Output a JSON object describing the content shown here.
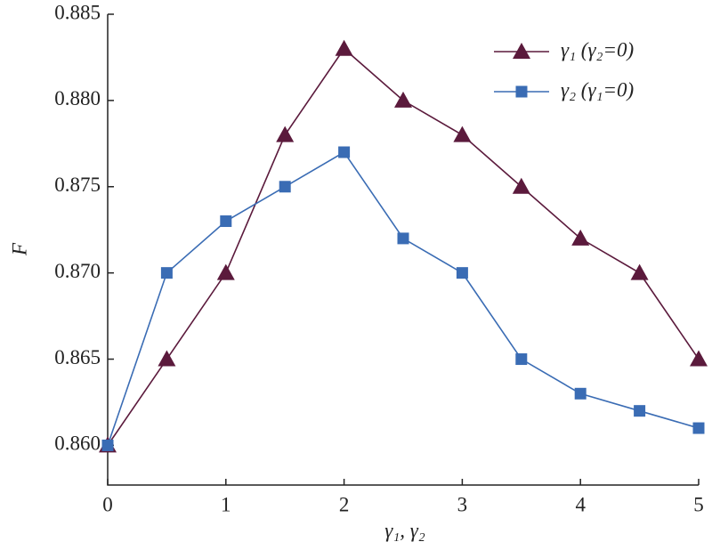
{
  "chart_data": {
    "type": "line",
    "x_label": "γ₁, γ₂",
    "y_label": "F",
    "x": [
      0,
      0.5,
      1,
      1.5,
      2,
      2.5,
      3,
      3.5,
      4,
      4.5,
      5
    ],
    "series": [
      {
        "name": "γ₁ (γ₂=0)",
        "color": "#5b1a3c",
        "marker": "triangle",
        "values": [
          0.86,
          0.865,
          0.87,
          0.878,
          0.883,
          0.88,
          0.878,
          0.875,
          0.872,
          0.87,
          0.865
        ]
      },
      {
        "name": "γ₂ (γ₁=0)",
        "color": "#3a6cb4",
        "marker": "square",
        "values": [
          0.86,
          0.87,
          0.873,
          0.875,
          0.877,
          0.872,
          0.87,
          0.865,
          0.863,
          0.862,
          0.861
        ]
      }
    ],
    "xlim": [
      0,
      5
    ],
    "xticks": [
      0,
      1,
      2,
      3,
      4,
      5
    ],
    "ylim": [
      0.8577,
      0.885
    ],
    "yticks": [
      {
        "value": 0.86,
        "label": "0.860"
      },
      {
        "value": 0.865,
        "label": "0.865"
      },
      {
        "value": 0.87,
        "label": "0.870"
      },
      {
        "value": 0.875,
        "label": "0.875"
      },
      {
        "value": 0.88,
        "label": "0.880"
      },
      {
        "value": 0.885,
        "label": "0.885"
      }
    ],
    "legend": "upper right"
  }
}
